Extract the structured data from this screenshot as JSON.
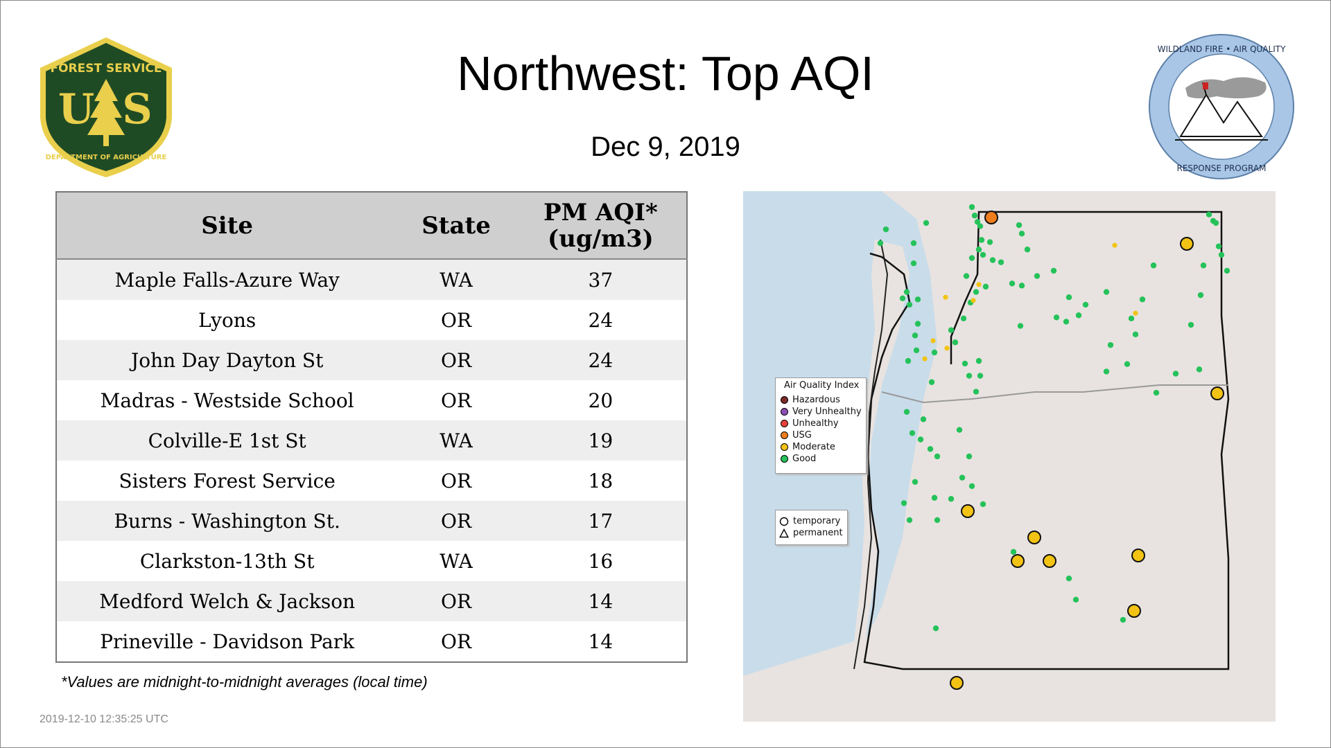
{
  "header": {
    "title": "Northwest: Top AQI",
    "date": "Dec  9, 2019"
  },
  "logos": {
    "left": {
      "top_text": "FOREST SERVICE",
      "letters": "U S",
      "bottom_text": "DEPARTMENT OF AGRICULTURE",
      "colors": {
        "green": "#1f4b24",
        "gold": "#e9cf4c"
      }
    },
    "right": {
      "top_text": "WILDLAND FIRE • AIR QUALITY",
      "bottom_text": "RESPONSE PROGRAM",
      "colors": {
        "ring": "#a9c6e6",
        "flag": "#cc2222"
      }
    }
  },
  "table": {
    "headers": {
      "site": "Site",
      "state": "State",
      "aqi_line1": "PM AQI*",
      "aqi_line2": "(ug/m3)"
    },
    "rows": [
      {
        "site": "Maple Falls-Azure Way",
        "state": "WA",
        "aqi": "37"
      },
      {
        "site": "Lyons",
        "state": "OR",
        "aqi": "24"
      },
      {
        "site": "John Day Dayton St",
        "state": "OR",
        "aqi": "24"
      },
      {
        "site": "Madras - Westside School",
        "state": "OR",
        "aqi": "20"
      },
      {
        "site": "Colville-E 1st St",
        "state": "WA",
        "aqi": "19"
      },
      {
        "site": "Sisters Forest Service",
        "state": "OR",
        "aqi": "18"
      },
      {
        "site": "Burns - Washington St.",
        "state": "OR",
        "aqi": "17"
      },
      {
        "site": "Clarkston-13th St",
        "state": "WA",
        "aqi": "16"
      },
      {
        "site": "Medford Welch & Jackson",
        "state": "OR",
        "aqi": "14"
      },
      {
        "site": "Prineville - Davidson Park",
        "state": "OR",
        "aqi": "14"
      }
    ]
  },
  "footnote": "*Values are midnight-to-midnight averages (local time)",
  "timestamp": "2019-12-10 12:35:25 UTC",
  "map": {
    "colors": {
      "water": "#c9dcea",
      "land": "#e8e3e0",
      "border": "#111111"
    },
    "legend": {
      "title": "Air Quality Index",
      "items": [
        {
          "label": "Hazardous",
          "color": "#7e2a2a"
        },
        {
          "label": "Very Unhealthy",
          "color": "#8d4fb5"
        },
        {
          "label": "Unhealthy",
          "color": "#e8433a"
        },
        {
          "label": "USG",
          "color": "#ee7d1d"
        },
        {
          "label": "Moderate",
          "color": "#f2c314"
        },
        {
          "label": "Good",
          "color": "#25c25a"
        }
      ]
    },
    "monitor_legend": {
      "temporary": "temporary",
      "permanent": "permanent"
    }
  }
}
